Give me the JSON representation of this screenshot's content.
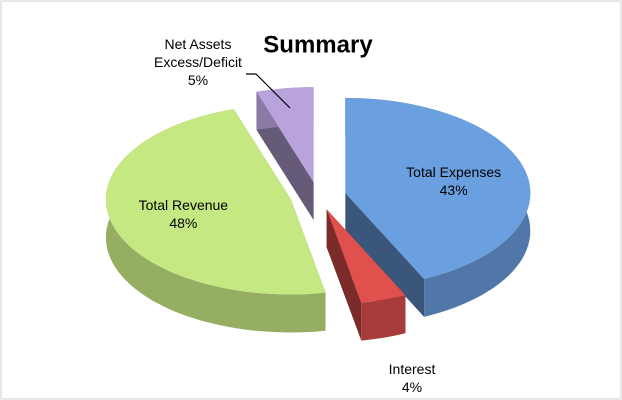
{
  "chart_data": {
    "type": "pie",
    "title": "Summary",
    "categories": [
      "Total Expenses",
      "Interest",
      "Total Revenue",
      "Net Assets Excess/Deficit"
    ],
    "values": [
      43,
      4,
      48,
      5
    ],
    "value_labels": [
      "43%",
      "4%",
      "48%",
      "5%"
    ],
    "colors": [
      "#6a9fe0",
      "#e0504d",
      "#c6e883",
      "#b9a3dc"
    ]
  }
}
